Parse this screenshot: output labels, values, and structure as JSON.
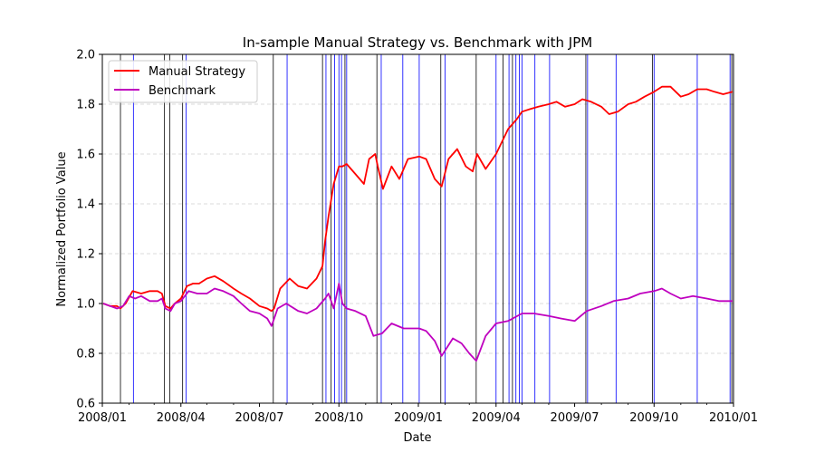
{
  "chart_data": {
    "type": "line",
    "title": "In-sample Manual Strategy vs. Benchmark with JPM",
    "xlabel": "Date",
    "ylabel": "Normalized Portfolio Value",
    "xlim": [
      "2008-01-01",
      "2010-01-01"
    ],
    "ylim": [
      0.6,
      2.0
    ],
    "x_ticks": [
      "2008/01",
      "2008/04",
      "2008/07",
      "2008/10",
      "2009/01",
      "2009/04",
      "2009/07",
      "2009/10",
      "2010/01"
    ],
    "x_tick_dates": [
      "2008-01-01",
      "2008-04-01",
      "2008-07-01",
      "2008-10-01",
      "2009-01-01",
      "2009-04-01",
      "2009-07-01",
      "2009-10-01",
      "2010-01-01"
    ],
    "y_ticks": [
      "0.6",
      "0.8",
      "1.0",
      "1.2",
      "1.4",
      "1.6",
      "1.8",
      "2.0"
    ],
    "grid": "horizontal-dashed",
    "legend_position": "top-left",
    "series": [
      {
        "name": "Manual Strategy",
        "color": "#ff0000",
        "x": [
          "2008-01-02",
          "2008-01-10",
          "2008-01-18",
          "2008-01-22",
          "2008-01-28",
          "2008-02-05",
          "2008-02-15",
          "2008-02-25",
          "2008-03-05",
          "2008-03-10",
          "2008-03-14",
          "2008-03-20",
          "2008-03-25",
          "2008-04-01",
          "2008-04-08",
          "2008-04-15",
          "2008-04-22",
          "2008-05-01",
          "2008-05-10",
          "2008-05-20",
          "2008-06-01",
          "2008-06-10",
          "2008-06-20",
          "2008-07-01",
          "2008-07-10",
          "2008-07-15",
          "2008-07-18",
          "2008-07-25",
          "2008-08-05",
          "2008-08-15",
          "2008-08-25",
          "2008-09-05",
          "2008-09-12",
          "2008-09-15",
          "2008-09-19",
          "2008-09-25",
          "2008-10-01",
          "2008-10-05",
          "2008-10-10",
          "2008-10-20",
          "2008-10-30",
          "2008-11-05",
          "2008-11-12",
          "2008-11-15",
          "2008-11-21",
          "2008-12-01",
          "2008-12-10",
          "2008-12-20",
          "2009-01-02",
          "2009-01-10",
          "2009-01-20",
          "2009-01-28",
          "2009-02-05",
          "2009-02-15",
          "2009-02-25",
          "2009-03-05",
          "2009-03-10",
          "2009-03-20",
          "2009-04-01",
          "2009-04-15",
          "2009-04-25",
          "2009-05-01",
          "2009-05-10",
          "2009-05-20",
          "2009-06-01",
          "2009-06-10",
          "2009-06-20",
          "2009-07-01",
          "2009-07-10",
          "2009-07-20",
          "2009-08-01",
          "2009-08-10",
          "2009-08-20",
          "2009-09-01",
          "2009-09-10",
          "2009-09-20",
          "2009-10-01",
          "2009-10-10",
          "2009-10-20",
          "2009-11-01",
          "2009-11-10",
          "2009-11-20",
          "2009-12-01",
          "2009-12-10",
          "2009-12-20",
          "2009-12-31"
        ],
        "y": [
          1.0,
          0.99,
          0.99,
          0.98,
          1.0,
          1.05,
          1.04,
          1.05,
          1.05,
          1.04,
          0.99,
          0.98,
          1.0,
          1.02,
          1.07,
          1.08,
          1.08,
          1.1,
          1.11,
          1.09,
          1.06,
          1.04,
          1.02,
          0.99,
          0.98,
          0.97,
          0.98,
          1.06,
          1.1,
          1.07,
          1.06,
          1.1,
          1.15,
          1.25,
          1.35,
          1.48,
          1.55,
          1.55,
          1.56,
          1.52,
          1.48,
          1.58,
          1.6,
          1.55,
          1.46,
          1.55,
          1.5,
          1.58,
          1.59,
          1.58,
          1.5,
          1.47,
          1.58,
          1.62,
          1.55,
          1.53,
          1.6,
          1.54,
          1.6,
          1.7,
          1.74,
          1.77,
          1.78,
          1.79,
          1.8,
          1.81,
          1.79,
          1.8,
          1.82,
          1.81,
          1.79,
          1.76,
          1.77,
          1.8,
          1.81,
          1.83,
          1.85,
          1.87,
          1.87,
          1.83,
          1.84,
          1.86,
          1.86,
          1.85,
          1.84,
          1.85
        ]
      },
      {
        "name": "Benchmark",
        "color": "#bf00bf",
        "x": [
          "2008-01-02",
          "2008-01-10",
          "2008-01-18",
          "2008-01-25",
          "2008-02-01",
          "2008-02-08",
          "2008-02-15",
          "2008-02-25",
          "2008-03-05",
          "2008-03-10",
          "2008-03-14",
          "2008-03-20",
          "2008-03-25",
          "2008-04-01",
          "2008-04-10",
          "2008-04-20",
          "2008-05-01",
          "2008-05-10",
          "2008-05-20",
          "2008-06-01",
          "2008-06-10",
          "2008-06-20",
          "2008-07-01",
          "2008-07-10",
          "2008-07-15",
          "2008-07-22",
          "2008-08-01",
          "2008-08-15",
          "2008-08-25",
          "2008-09-05",
          "2008-09-15",
          "2008-09-19",
          "2008-09-25",
          "2008-10-01",
          "2008-10-05",
          "2008-10-10",
          "2008-10-20",
          "2008-11-01",
          "2008-11-10",
          "2008-11-20",
          "2008-12-01",
          "2008-12-15",
          "2009-01-02",
          "2009-01-10",
          "2009-01-20",
          "2009-01-28",
          "2009-02-10",
          "2009-02-20",
          "2009-03-01",
          "2009-03-09",
          "2009-03-20",
          "2009-04-01",
          "2009-04-15",
          "2009-05-01",
          "2009-05-15",
          "2009-06-01",
          "2009-06-15",
          "2009-07-01",
          "2009-07-15",
          "2009-08-01",
          "2009-08-15",
          "2009-09-01",
          "2009-09-15",
          "2009-10-01",
          "2009-10-10",
          "2009-10-20",
          "2009-11-01",
          "2009-11-15",
          "2009-12-01",
          "2009-12-15",
          "2009-12-31"
        ],
        "y": [
          1.0,
          0.99,
          0.98,
          0.99,
          1.03,
          1.02,
          1.03,
          1.01,
          1.01,
          1.02,
          0.98,
          0.97,
          1.0,
          1.01,
          1.05,
          1.04,
          1.04,
          1.06,
          1.05,
          1.03,
          1.0,
          0.97,
          0.96,
          0.94,
          0.91,
          0.98,
          1.0,
          0.97,
          0.96,
          0.98,
          1.02,
          1.04,
          0.98,
          1.08,
          1.0,
          0.98,
          0.97,
          0.95,
          0.87,
          0.88,
          0.92,
          0.9,
          0.9,
          0.89,
          0.85,
          0.79,
          0.86,
          0.84,
          0.8,
          0.77,
          0.87,
          0.92,
          0.93,
          0.96,
          0.96,
          0.95,
          0.94,
          0.93,
          0.97,
          0.99,
          1.01,
          1.02,
          1.04,
          1.05,
          1.06,
          1.04,
          1.02,
          1.03,
          1.02,
          1.01,
          1.01
        ]
      }
    ],
    "vertical_lines": [
      {
        "color": "#000000",
        "dates": [
          "2008-01-22",
          "2008-03-13",
          "2008-03-19",
          "2008-04-03",
          "2008-07-17",
          "2008-09-12",
          "2008-09-22",
          "2008-10-08",
          "2008-11-14",
          "2009-01-27",
          "2009-03-09",
          "2009-04-09",
          "2009-04-20",
          "2009-07-14",
          "2009-09-29",
          "2009-12-30"
        ]
      },
      {
        "color": "#0000ff",
        "dates": [
          "2008-02-06",
          "2008-04-07",
          "2008-08-02",
          "2008-09-16",
          "2008-09-26",
          "2008-10-01",
          "2008-10-04",
          "2008-10-10",
          "2008-11-19",
          "2008-12-14",
          "2009-01-02",
          "2009-02-01",
          "2009-04-01",
          "2009-04-16",
          "2009-04-24",
          "2009-04-28",
          "2009-05-01",
          "2009-05-16",
          "2009-06-02",
          "2009-07-16",
          "2009-08-18",
          "2009-10-01",
          "2009-11-20",
          "2009-12-28"
        ]
      }
    ]
  }
}
